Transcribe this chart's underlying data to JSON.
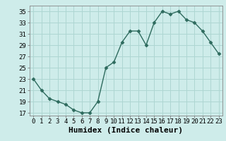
{
  "x": [
    0,
    1,
    2,
    3,
    4,
    5,
    6,
    7,
    8,
    9,
    10,
    11,
    12,
    13,
    14,
    15,
    16,
    17,
    18,
    19,
    20,
    21,
    22,
    23
  ],
  "y": [
    23,
    21,
    19.5,
    19,
    18.5,
    17.5,
    17,
    17,
    19,
    25,
    26,
    29.5,
    31.5,
    31.5,
    29,
    33,
    35,
    34.5,
    35,
    33.5,
    33,
    31.5,
    29.5,
    27.5
  ],
  "title": "",
  "xlabel": "Humidex (Indice chaleur)",
  "ylabel": "",
  "xlim": [
    -0.5,
    23.5
  ],
  "ylim": [
    16.5,
    36
  ],
  "yticks": [
    17,
    19,
    21,
    23,
    25,
    27,
    29,
    31,
    33,
    35
  ],
  "xticks": [
    0,
    1,
    2,
    3,
    4,
    5,
    6,
    7,
    8,
    9,
    10,
    11,
    12,
    13,
    14,
    15,
    16,
    17,
    18,
    19,
    20,
    21,
    22,
    23
  ],
  "line_color": "#2e6b5e",
  "marker": "D",
  "marker_size": 2.5,
  "background_color": "#ceecea",
  "grid_color": "#aed6d2",
  "tick_fontsize": 6.5,
  "xlabel_fontsize": 8,
  "line_width": 1.0
}
